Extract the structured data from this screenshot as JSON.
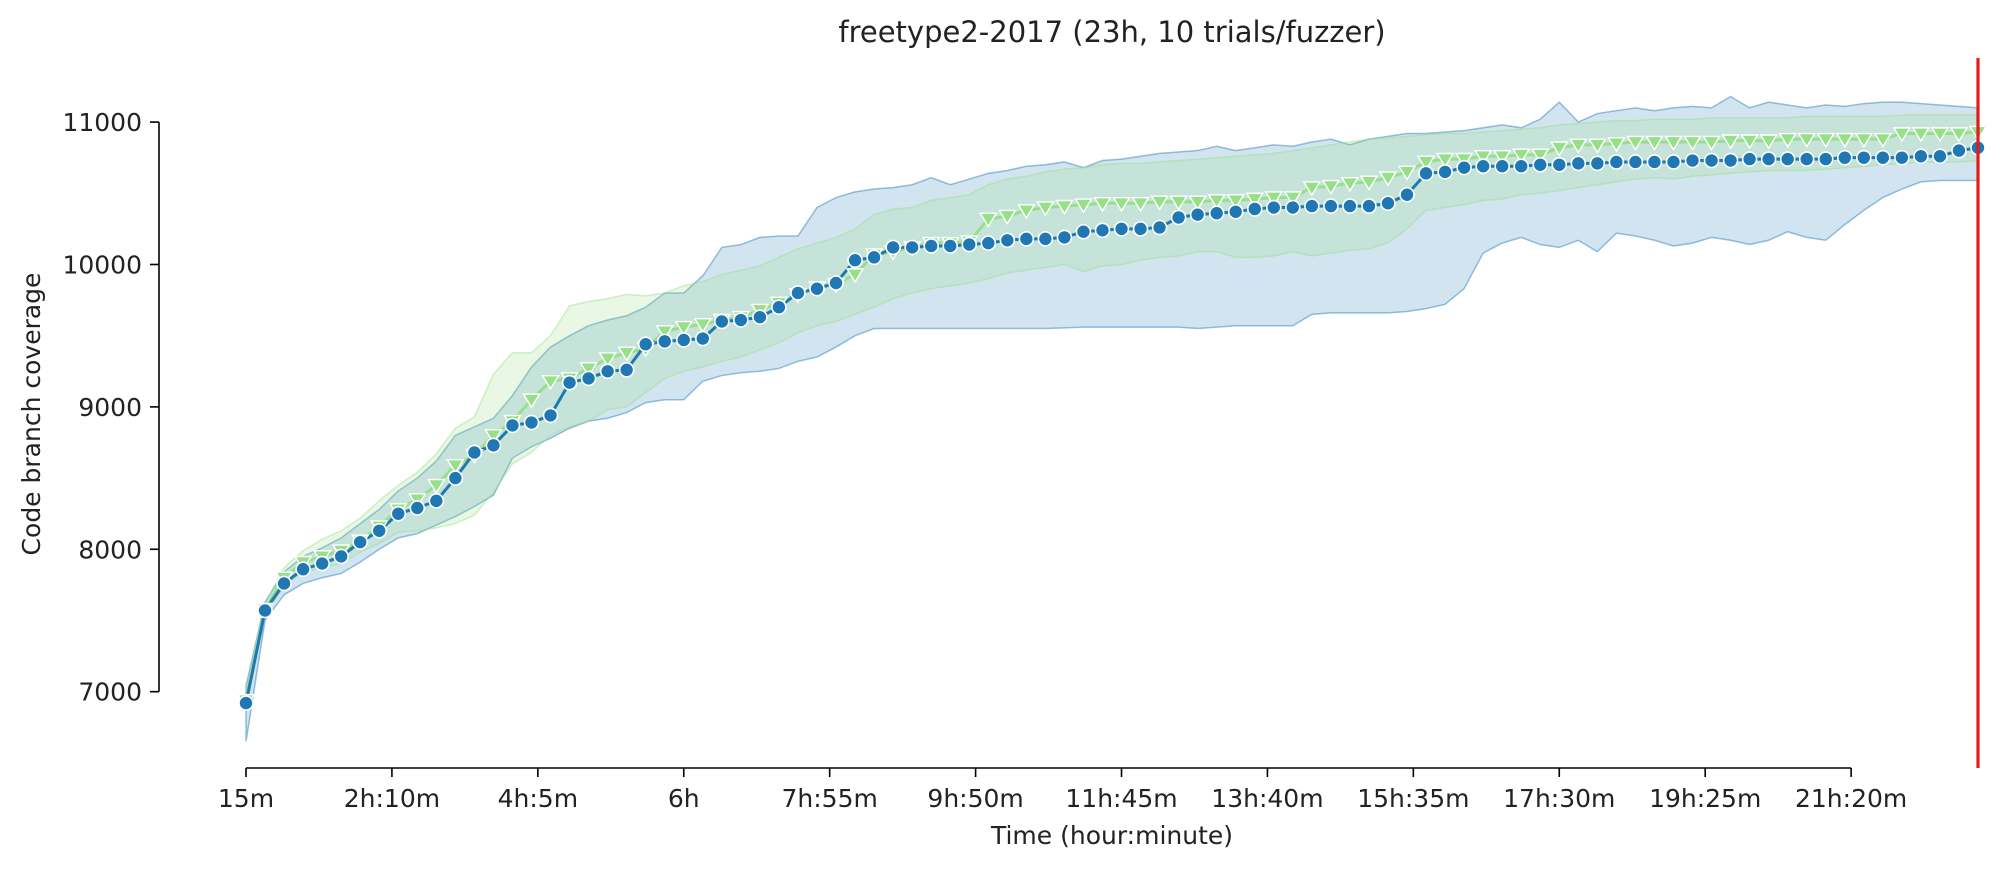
{
  "chart_data": {
    "type": "line",
    "title": "freetype2-2017 (23h, 10 trials/fuzzer)",
    "xlabel": "Time (hour:minute)",
    "ylabel": "Code branch coverage",
    "x_unit": "minutes",
    "xlim": [
      15,
      1380
    ],
    "ylim": [
      6450,
      11450
    ],
    "x_ticks": [
      {
        "value": 15,
        "label": "15m"
      },
      {
        "value": 130,
        "label": "2h:10m"
      },
      {
        "value": 245,
        "label": "4h:5m"
      },
      {
        "value": 360,
        "label": "6h"
      },
      {
        "value": 475,
        "label": "7h:55m"
      },
      {
        "value": 590,
        "label": "9h:50m"
      },
      {
        "value": 705,
        "label": "11h:45m"
      },
      {
        "value": 820,
        "label": "13h:40m"
      },
      {
        "value": 935,
        "label": "15h:35m"
      },
      {
        "value": 1050,
        "label": "17h:30m"
      },
      {
        "value": 1165,
        "label": "19h:25m"
      },
      {
        "value": 1280,
        "label": "21h:20m"
      }
    ],
    "y_ticks": [
      {
        "value": 7000,
        "label": "7000"
      },
      {
        "value": 8000,
        "label": "8000"
      },
      {
        "value": 9000,
        "label": "9000"
      },
      {
        "value": 10000,
        "label": "10000"
      },
      {
        "value": 11000,
        "label": "11000"
      }
    ],
    "vline": {
      "x": 1380,
      "color": "#e41a1c"
    },
    "x": [
      15,
      30,
      45,
      60,
      75,
      90,
      105,
      120,
      135,
      150,
      165,
      180,
      195,
      210,
      225,
      240,
      255,
      270,
      285,
      300,
      315,
      330,
      345,
      360,
      375,
      390,
      405,
      420,
      435,
      450,
      465,
      480,
      495,
      510,
      525,
      540,
      555,
      570,
      585,
      600,
      615,
      630,
      645,
      660,
      675,
      690,
      705,
      720,
      735,
      750,
      765,
      780,
      795,
      810,
      825,
      840,
      855,
      870,
      885,
      900,
      915,
      930,
      945,
      960,
      975,
      990,
      1005,
      1020,
      1035,
      1050,
      1065,
      1080,
      1095,
      1110,
      1125,
      1140,
      1155,
      1170,
      1185,
      1200,
      1215,
      1230,
      1245,
      1260,
      1275,
      1290,
      1305,
      1320,
      1335,
      1350,
      1365,
      1380
    ],
    "series": [
      {
        "color": "#1f77b4",
        "marker": "circle",
        "values": [
          6920,
          7570,
          7760,
          7860,
          7900,
          7950,
          8050,
          8130,
          8250,
          8290,
          8340,
          8500,
          8680,
          8730,
          8870,
          8890,
          8940,
          9170,
          9200,
          9250,
          9260,
          9440,
          9460,
          9470,
          9480,
          9600,
          9610,
          9630,
          9700,
          9800,
          9830,
          9870,
          10030,
          10050,
          10120,
          10120,
          10130,
          10130,
          10140,
          10150,
          10170,
          10180,
          10180,
          10190,
          10230,
          10240,
          10250,
          10250,
          10260,
          10330,
          10350,
          10360,
          10370,
          10390,
          10400,
          10400,
          10410,
          10410,
          10410,
          10410,
          10430,
          10490,
          10640,
          10650,
          10680,
          10690,
          10690,
          10690,
          10700,
          10700,
          10710,
          10710,
          10720,
          10720,
          10720,
          10720,
          10730,
          10730,
          10730,
          10740,
          10740,
          10740,
          10740,
          10740,
          10750,
          10750,
          10750,
          10750,
          10760,
          10760,
          10800,
          10820
        ],
        "band_lower": [
          6650,
          7500,
          7680,
          7760,
          7800,
          7830,
          7910,
          8000,
          8080,
          8110,
          8170,
          8230,
          8300,
          8380,
          8640,
          8720,
          8780,
          8850,
          8900,
          8920,
          8960,
          9030,
          9050,
          9050,
          9180,
          9220,
          9240,
          9250,
          9270,
          9320,
          9350,
          9420,
          9500,
          9550,
          9550,
          9550,
          9550,
          9550,
          9550,
          9550,
          9550,
          9550,
          9550,
          9555,
          9560,
          9560,
          9560,
          9560,
          9560,
          9560,
          9550,
          9560,
          9570,
          9570,
          9570,
          9570,
          9650,
          9660,
          9660,
          9660,
          9660,
          9670,
          9690,
          9720,
          9830,
          10080,
          10150,
          10190,
          10140,
          10120,
          10170,
          10090,
          10220,
          10200,
          10170,
          10130,
          10150,
          10190,
          10170,
          10140,
          10170,
          10230,
          10190,
          10170,
          10280,
          10380,
          10470,
          10530,
          10580,
          10590,
          10590,
          10590
        ],
        "band_upper": [
          7040,
          7630,
          7840,
          7950,
          8010,
          8080,
          8180,
          8280,
          8410,
          8500,
          8620,
          8800,
          8860,
          8920,
          9080,
          9280,
          9420,
          9500,
          9570,
          9610,
          9640,
          9700,
          9800,
          9800,
          9920,
          10120,
          10140,
          10190,
          10200,
          10200,
          10400,
          10470,
          10510,
          10530,
          10540,
          10560,
          10610,
          10560,
          10600,
          10640,
          10660,
          10690,
          10700,
          10720,
          10680,
          10730,
          10740,
          10760,
          10780,
          10790,
          10800,
          10830,
          10800,
          10820,
          10840,
          10830,
          10860,
          10880,
          10840,
          10880,
          10900,
          10920,
          10920,
          10930,
          10940,
          10960,
          10980,
          10960,
          11020,
          11140,
          11000,
          11060,
          11080,
          11100,
          11080,
          11100,
          11110,
          11100,
          11180,
          11100,
          11140,
          11120,
          11100,
          11120,
          11110,
          11130,
          11140,
          11140,
          11130,
          11120,
          11110,
          11100
        ]
      },
      {
        "color": "#98df8a",
        "marker": "triangle-down",
        "values": [
          6940,
          7580,
          7800,
          7910,
          7950,
          7990,
          8060,
          8160,
          8280,
          8350,
          8450,
          8590,
          8660,
          8800,
          8900,
          9050,
          9180,
          9200,
          9270,
          9340,
          9380,
          9410,
          9530,
          9560,
          9580,
          9610,
          9630,
          9680,
          9730,
          9790,
          9840,
          9860,
          9930,
          10070,
          10090,
          10120,
          10150,
          10150,
          10160,
          10320,
          10340,
          10380,
          10400,
          10410,
          10420,
          10430,
          10430,
          10430,
          10440,
          10440,
          10440,
          10450,
          10450,
          10460,
          10470,
          10470,
          10540,
          10550,
          10570,
          10580,
          10610,
          10650,
          10720,
          10740,
          10740,
          10760,
          10760,
          10770,
          10770,
          10820,
          10840,
          10840,
          10850,
          10860,
          10860,
          10860,
          10860,
          10860,
          10870,
          10870,
          10870,
          10880,
          10880,
          10880,
          10880,
          10880,
          10880,
          10920,
          10920,
          10920,
          10920,
          10930
        ],
        "band_lower": [
          6880,
          7540,
          7740,
          7840,
          7870,
          7900,
          7980,
          8040,
          8120,
          8130,
          8150,
          8180,
          8240,
          8400,
          8600,
          8680,
          8800,
          8860,
          8900,
          8980,
          9000,
          9100,
          9200,
          9250,
          9280,
          9320,
          9350,
          9400,
          9450,
          9520,
          9570,
          9600,
          9650,
          9700,
          9760,
          9800,
          9830,
          9850,
          9870,
          9900,
          9940,
          9960,
          9980,
          10000,
          9950,
          9990,
          10000,
          10030,
          10050,
          10060,
          10090,
          10090,
          10050,
          10050,
          10060,
          10090,
          10060,
          10080,
          10100,
          10110,
          10150,
          10250,
          10380,
          10400,
          10420,
          10450,
          10460,
          10490,
          10500,
          10520,
          10540,
          10560,
          10580,
          10600,
          10610,
          10600,
          10620,
          10630,
          10640,
          10650,
          10660,
          10660,
          10660,
          10670,
          10680,
          10690,
          10700,
          10710,
          10720,
          10720,
          10720,
          10730
        ],
        "band_upper": [
          7000,
          7620,
          7870,
          7990,
          8070,
          8130,
          8220,
          8340,
          8450,
          8540,
          8670,
          8850,
          8930,
          9230,
          9380,
          9380,
          9500,
          9710,
          9740,
          9760,
          9790,
          9780,
          9800,
          9850,
          9880,
          9930,
          9960,
          9990,
          10050,
          10110,
          10150,
          10190,
          10250,
          10350,
          10390,
          10400,
          10450,
          10470,
          10490,
          10560,
          10600,
          10620,
          10650,
          10670,
          10680,
          10700,
          10710,
          10710,
          10720,
          10730,
          10740,
          10750,
          10760,
          10770,
          10780,
          10800,
          10820,
          10840,
          10860,
          10880,
          10890,
          10900,
          10910,
          10920,
          10920,
          10930,
          10940,
          10950,
          10960,
          10980,
          10990,
          11000,
          11010,
          11010,
          11020,
          11020,
          11020,
          11030,
          11030,
          11030,
          11030,
          11030,
          11040,
          11040,
          11040,
          11040,
          11040,
          11050,
          11050,
          11050,
          11050,
          11050
        ]
      }
    ]
  }
}
